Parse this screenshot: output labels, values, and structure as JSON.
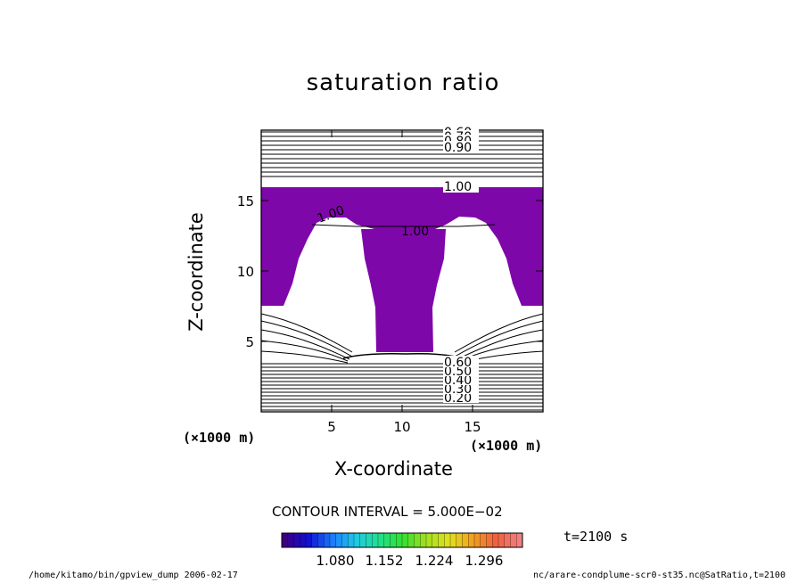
{
  "chart_data": {
    "type": "contour",
    "title": "saturation ratio",
    "xlabel": "X-coordinate",
    "ylabel": "Z-coordinate",
    "x_unit": "(×1000 m)",
    "y_unit": "(×1000 m)",
    "xlim": [
      0,
      20
    ],
    "ylim": [
      0,
      20
    ],
    "x_ticks": [
      5,
      10,
      15
    ],
    "y_ticks": [
      5,
      10,
      15
    ],
    "contour_interval_text": "CONTOUR INTERVAL = 5.000E−02",
    "contour_labels_upper": [
      "0.60",
      "0.70",
      "0.80",
      "0.90",
      "1.00"
    ],
    "contour_labels_lower": [
      "0.20",
      "0.30",
      "0.40",
      "0.50",
      "0.60"
    ],
    "contour_labels_inner": [
      "1.00",
      "1.00"
    ],
    "shaded_color": "#7e07a9",
    "colorbar": {
      "ticks": [
        "1.080",
        "1.152",
        "1.224",
        "1.296"
      ],
      "colors": [
        "#3f007f",
        "#1010d0",
        "#1a78ff",
        "#20c8e8",
        "#20e090",
        "#30e030",
        "#a0e020",
        "#e0e020",
        "#f0a020",
        "#f06040",
        "#f08080"
      ]
    },
    "time_label": "t=2100 s"
  },
  "footer": {
    "left": "/home/kitamo/bin/gpview_dump  2006-02-17",
    "right": "nc/arare-condplume-scr0-st35.nc@SatRatio,t=2100"
  }
}
